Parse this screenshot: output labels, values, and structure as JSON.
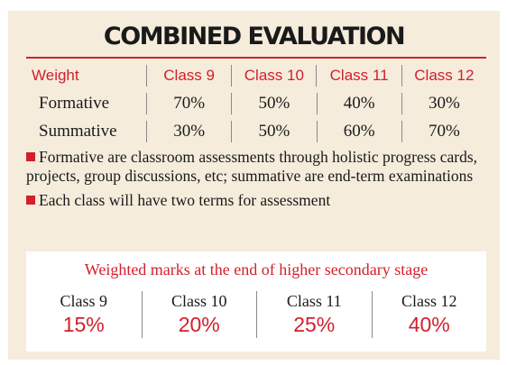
{
  "title": "COMBINED EVALUATION",
  "table": {
    "headers": [
      "Weight",
      "Class 9",
      "Class 10",
      "Class 11",
      "Class 12"
    ],
    "rows": [
      {
        "label": "Formative",
        "values": [
          "70%",
          "50%",
          "40%",
          "30%"
        ]
      },
      {
        "label": "Summative",
        "values": [
          "30%",
          "50%",
          "60%",
          "70%"
        ]
      }
    ]
  },
  "notes": [
    "Formative are classroom assessments through holistic progress cards, projects, group discussions, etc; summative are end-term examinations",
    "Each class will have two terms for assessment"
  ],
  "weighted": {
    "title": "Weighted marks at the end of higher secondary stage",
    "items": [
      {
        "label": "Class 9",
        "value": "15%"
      },
      {
        "label": "Class 10",
        "value": "20%"
      },
      {
        "label": "Class 11",
        "value": "25%"
      },
      {
        "label": "Class 12",
        "value": "40%"
      }
    ]
  },
  "colors": {
    "accent": "#d21f2b",
    "panel": "#f5ecdc"
  }
}
